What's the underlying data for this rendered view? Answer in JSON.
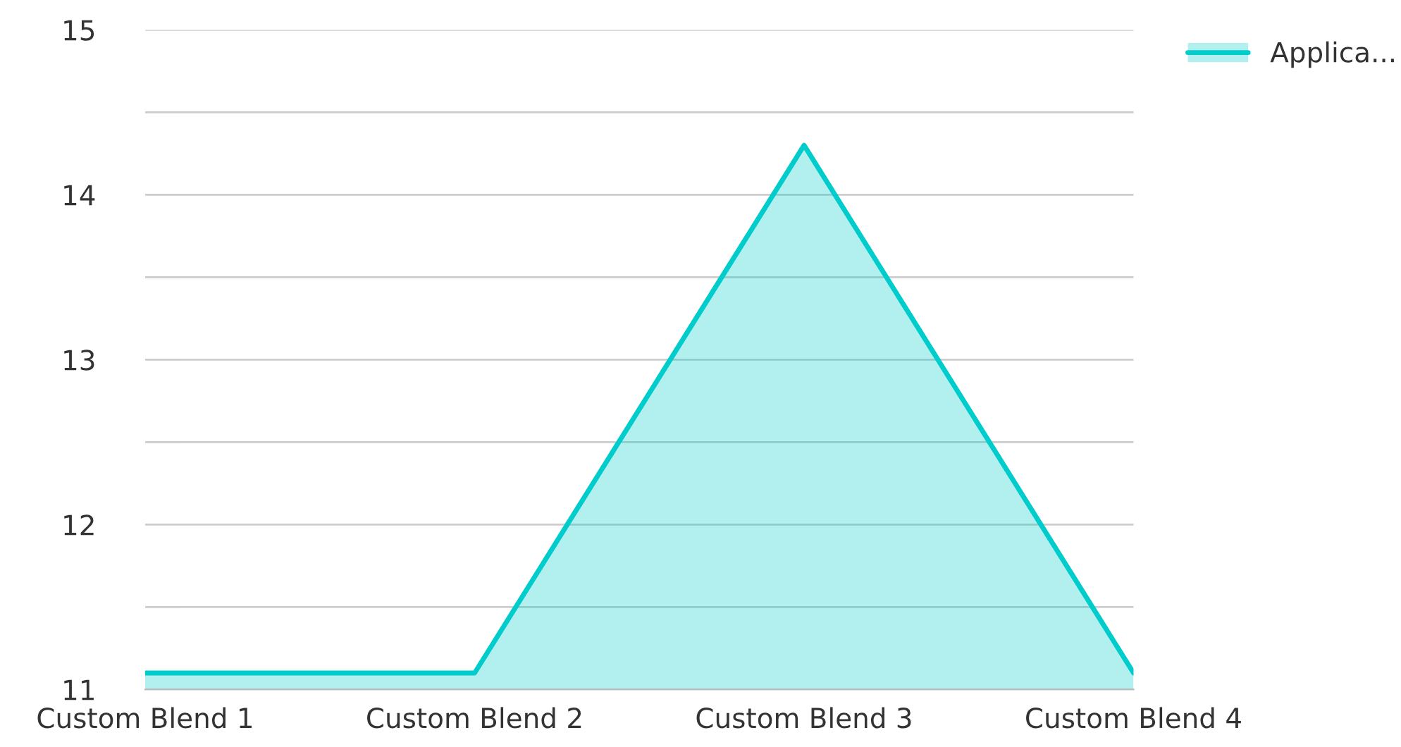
{
  "chart_data": {
    "type": "area",
    "categories": [
      "Custom Blend 1",
      "Custom Blend 2",
      "Custom Blend 3",
      "Custom Blend 4"
    ],
    "series": [
      {
        "name": "Applica...",
        "color": "#00cccc",
        "values": [
          11.1,
          11.1,
          14.3,
          11.1
        ]
      }
    ],
    "ylim": [
      11,
      15
    ],
    "yticks": [
      11,
      {
        "value": 11.5,
        "label": null
      },
      12,
      {
        "value": 12.5,
        "label": null
      },
      13,
      {
        "value": 13.5,
        "label": null
      },
      14,
      {
        "value": 14.5,
        "label": null
      },
      15
    ],
    "grid": "y",
    "legend": "top right"
  }
}
